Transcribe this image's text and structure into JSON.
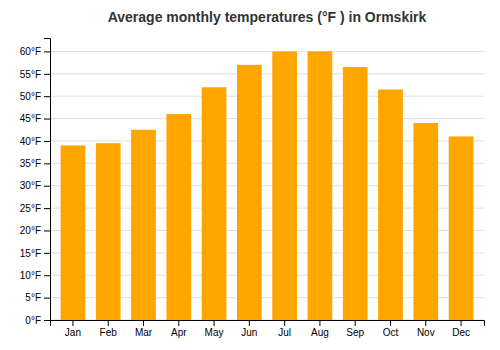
{
  "chart_data": {
    "type": "bar",
    "title": "Average monthly temperatures (°F ) in Ormskirk",
    "categories": [
      "Jan",
      "Feb",
      "Mar",
      "Apr",
      "May",
      "Jun",
      "Jul",
      "Aug",
      "Sep",
      "Oct",
      "Nov",
      "Dec"
    ],
    "values": [
      39.0,
      39.5,
      42.5,
      46.0,
      52.0,
      57.0,
      60.0,
      60.0,
      56.5,
      51.5,
      44.0,
      41.0
    ],
    "color": "#FFA500",
    "ylim": [
      0,
      63
    ],
    "yticks": [
      {
        "value": 0,
        "label": "0°F"
      },
      {
        "value": 5,
        "label": "5°F"
      },
      {
        "value": 10,
        "label": "10°F"
      },
      {
        "value": 15,
        "label": "15°F"
      },
      {
        "value": 20,
        "label": "20°F"
      },
      {
        "value": 25,
        "label": "25°F"
      },
      {
        "value": 30,
        "label": "30°F"
      },
      {
        "value": 35,
        "label": "35°F"
      },
      {
        "value": 40,
        "label": "40°F"
      },
      {
        "value": 45,
        "label": "45°F"
      },
      {
        "value": 50,
        "label": "50°F"
      },
      {
        "value": 55,
        "label": "55°F"
      },
      {
        "value": 60,
        "label": "60°F"
      }
    ],
    "grid": true
  }
}
